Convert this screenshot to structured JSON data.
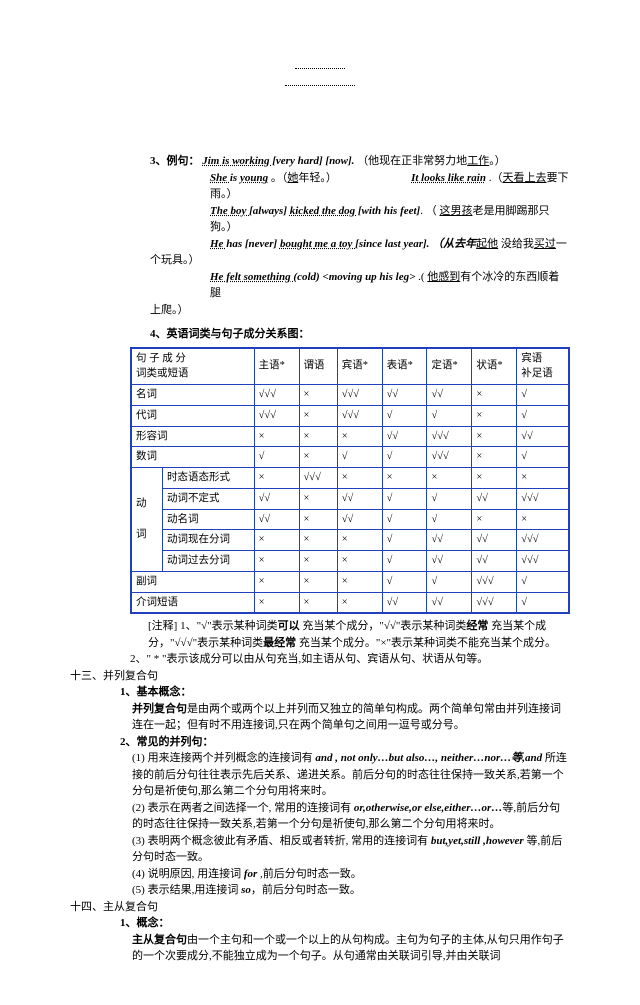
{
  "example_head": "3、例句：",
  "s1a": "Jim is working ",
  "s1b": "[very hard] [now].",
  "s1c": "（他现在正非常努力地",
  "s1d": "工作",
  "s1e": "。）",
  "s2a": "She ",
  "s2b": "is ",
  "s2c": "young",
  "s2d": "。（",
  "s2e": "她",
  "s2f": "年轻。）",
  "s2sp": "                         ",
  "s2g": "It looks ",
  "s2h": "like rain",
  "s2i": ".（",
  "s2j": "天看上去",
  "s2k": "要下雨。）",
  "s3a": "The boy ",
  "s3b": "[always] ",
  "s3c": "kicked ",
  "s3d": "the dog ",
  "s3e": "[with his feet]",
  "s3f": ". （",
  "s3g": "这男孩",
  "s3h": "老是用脚踢那只狗。）",
  "s4a": "He ",
  "s4b": "has [never] ",
  "s4c": "bought ",
  "s4d": "me a toy ",
  "s4e": "[since last year].   （从去年",
  "s4f": "起他",
  "s4g": "没给我",
  "s4h": "买过",
  "s4i": "一",
  "s4_end": "个玩具。）",
  "s5a": "He felt something ",
  "s5b": "(cold) ",
  "s5c": "<moving up his leg>",
  "s5d": ".( ",
  "s5e": "他感到",
  "s5f": "有个冰冷的东西顺着腿",
  "s5_end": "上爬。）",
  "table_title": "4、英语词类与句子成分关系图：",
  "hdr": [
    "句 子 成 分\n词类或短语",
    "主语*",
    "谓语",
    "宾语*",
    "表语*",
    "定语*",
    "状语*",
    "宾语\n补足语"
  ],
  "rows": [
    [
      "名词",
      "√√√",
      "×",
      "√√√",
      "√√",
      "√√",
      "×",
      "√"
    ],
    [
      "代词",
      "√√√",
      "×",
      "√√√",
      "√",
      "√",
      "×",
      "√"
    ],
    [
      "形容词",
      "×",
      "×",
      "×",
      "√√",
      "√√√",
      "×",
      "√√"
    ],
    [
      "数词",
      "√",
      "×",
      "√",
      "√",
      "√√√",
      "×",
      "√"
    ]
  ],
  "verb_label": "动\n\n词",
  "verb_rows": [
    [
      "时态语态形式",
      "×",
      "√√√",
      "×",
      "×",
      "×",
      "×",
      "×"
    ],
    [
      "动词不定式",
      "√√",
      "×",
      "√√",
      "√",
      "√",
      "√√",
      "√√√"
    ],
    [
      "动名词",
      "√√",
      "×",
      "√√",
      "√",
      "√",
      "×",
      "×"
    ],
    [
      "动词现在分词",
      "×",
      "×",
      "×",
      "√",
      "√√",
      "√√",
      "√√√"
    ],
    [
      "动词过去分词",
      "×",
      "×",
      "×",
      "√",
      "√√",
      "√√",
      "√√√"
    ]
  ],
  "rows2": [
    [
      "副词",
      "×",
      "×",
      "×",
      "√",
      "√",
      "√√√",
      "√"
    ],
    [
      "介词短语",
      "×",
      "×",
      "×",
      "√√",
      "√√",
      "√√√",
      "√"
    ]
  ],
  "note_head": "[注释] 1、",
  "note1a": "\"√\"表示某种词类",
  "note1b": "可以",
  "note1c": "充当某个成分，\"√√\"表示某种词类",
  "note1d": "经常",
  "note1e": "充当某个成分，\"√√√\"表示某种词类",
  "note1f": "最经常",
  "note1g": "充当某个成分。\"×\"表示某种词类不能充当某个成分。",
  "note2": "2、\" * \"表示该成分可以由从句充当,如主语从句、宾语从句、状语从句等。",
  "sec13": "十三、并列复合句",
  "s13_1": "1、基本概念：",
  "s13_1b": "并列复合句",
  "s13_1c": "是由两个或两个以上并列而又独立的简单句构成。两个简单句常由并列连接词连在一起；但有时不用连接词,只在两个简单句之间用一逗号或分号。",
  "s13_2": "2、常见的并列句：",
  "s13_2_1a": "(1) 用来连接两个并列概念的连接词有 ",
  "s13_2_1b": "and , not only…but also…, neither…nor…等,and",
  "s13_2_1c": " 所连接的前后分句往往表示先后关系、递进关系。前后分句的时态往往保持一致关系,若第一个分句是祈使句,那么第二个分句用将来时。",
  "s13_2_2a": "(2) 表示在两者之间选择一个, 常用的连接词有 ",
  "s13_2_2b": "or,otherwise,or else,either…or…",
  "s13_2_2c": "等,前后分句的时态往往保持一致关系,若第一个分句是祈使句,那么第二个分句用将来时。",
  "s13_2_3a": "(3) 表明两个概念彼此有矛盾、相反或者转折, 常用的连接词有 ",
  "s13_2_3b": "but,yet,still ,however",
  "s13_2_3c": " 等,前后分句时态一致。",
  "s13_2_4a": "(4) 说明原因, 用连接词 ",
  "s13_2_4b": "for",
  "s13_2_4c": " ,前后分句时态一致。",
  "s13_2_5a": "(5) 表示结果,用连接词 ",
  "s13_2_5b": "so",
  "s13_2_5c": "，前后分句时态一致。",
  "sec14": "十四、主从复合句",
  "s14_1": "1、概念：",
  "s14_1b": "主从复合句",
  "s14_1c": "由一个主句和一个或一个以上的从句构成。主句为句子的主体,从句只用作句子的一个次要成分,不能独立成为一个句子。从句通常由关联词引导,并由关联词"
}
